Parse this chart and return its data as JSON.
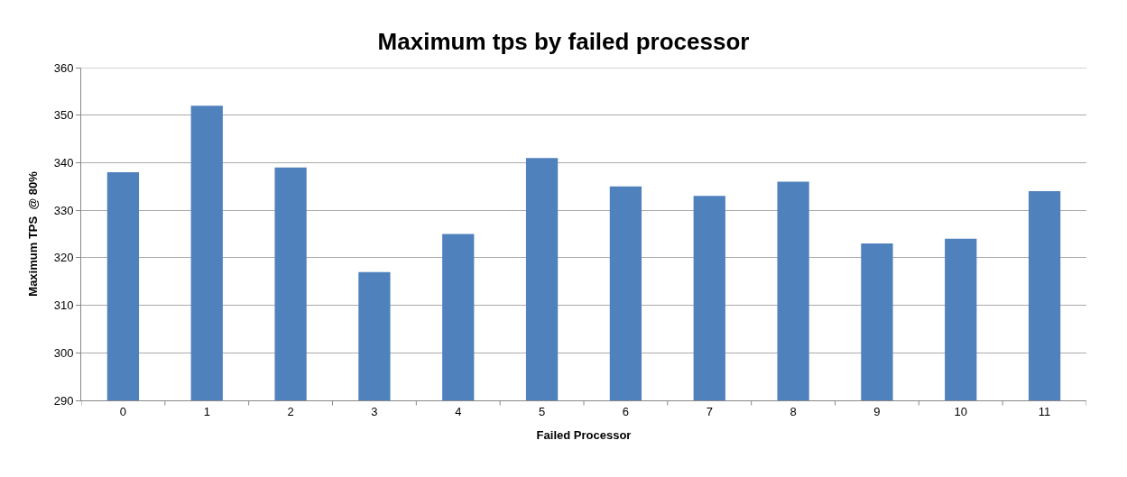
{
  "chart_data": {
    "type": "bar",
    "title": "Maximum tps by failed processor",
    "xlabel": "Failed Processor",
    "ylabel": "Maximum TPS  @ 80%",
    "categories": [
      "0",
      "1",
      "2",
      "3",
      "4",
      "5",
      "6",
      "7",
      "8",
      "9",
      "10",
      "11"
    ],
    "values": [
      338,
      352,
      339,
      317,
      325,
      341,
      335,
      333,
      336,
      323,
      324,
      334
    ],
    "color": "#4f81bd",
    "ylim": [
      290,
      360
    ],
    "yticks": [
      290,
      300,
      310,
      320,
      330,
      340,
      350,
      360
    ],
    "grid": "y"
  }
}
